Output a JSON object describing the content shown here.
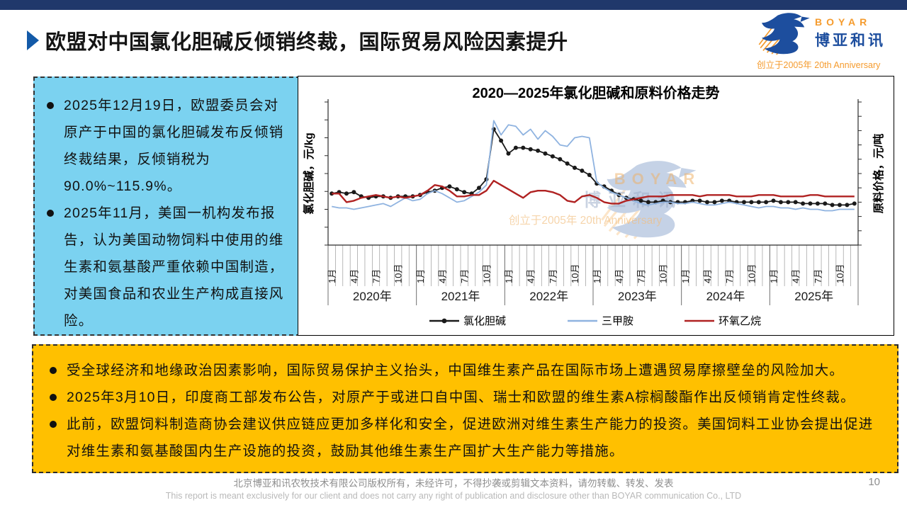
{
  "header": {
    "title": "欧盟对中国氯化胆碱反倾销终裁，国际贸易风险因素提升"
  },
  "logo": {
    "brand_en": "BOYAR",
    "brand_cn": "博亚和讯",
    "tagline": "创立于2005年 20th Anniversary"
  },
  "left_box": {
    "bullets": [
      "2025年12月19日，欧盟委员会对原产于中国的氯化胆碱发布反倾销终裁结果，反倾销税为90.0%~115.9%。",
      "2025年11月，美国一机构发布报告，认为美国动物饲料中使用的维生素和氨基酸严重依赖中国制造，对美国食品和农业生产构成直接风险。"
    ]
  },
  "chart_data": {
    "type": "line",
    "title": "2020—2025年氯化胆碱和原料价格走势",
    "ylabel_left": "氯化胆碱，元/kg",
    "ylabel_right": "原料价格，元/吨",
    "legend_position": "bottom",
    "grid": false,
    "x_axis": {
      "years": [
        "2020年",
        "2021年",
        "2022年",
        "2023年",
        "2024年",
        "2025年"
      ],
      "month_tick_labels": [
        "1月",
        "4月",
        "7月",
        "10月"
      ],
      "months_per_year": 12,
      "start": "2020-01",
      "end": "2025-12"
    },
    "value_scale_note": "坐标轴仅有刻度线、无数值标签；数值为按像素估算的相对价格水平(0-100)",
    "series": [
      {
        "id": "choline-chloride",
        "name": "氯化胆碱",
        "color": "#1a1a1a",
        "marker": true,
        "axis": "left",
        "values": [
          36,
          37,
          36,
          37,
          34,
          33,
          34,
          34,
          33,
          34,
          34,
          34,
          35,
          37,
          38,
          40,
          41,
          39,
          37,
          36,
          40,
          46,
          81,
          73,
          64,
          68,
          68,
          67,
          66,
          64,
          62,
          60,
          57,
          54,
          52,
          49,
          43,
          41,
          38,
          35,
          33,
          32,
          31,
          30,
          30,
          31,
          30,
          30,
          30,
          31,
          31,
          30,
          30,
          31,
          31,
          30,
          30,
          30,
          30,
          30,
          31,
          30,
          30,
          30,
          29,
          29,
          29,
          29,
          28,
          28,
          28,
          29
        ]
      },
      {
        "id": "trimethylamine",
        "name": "三甲胺",
        "color": "#8FB3E0",
        "marker": false,
        "axis": "right",
        "values": [
          27,
          26,
          26,
          25,
          26,
          27,
          28,
          29,
          27,
          30,
          33,
          31,
          32,
          36,
          38,
          36,
          33,
          30,
          31,
          34,
          37,
          42,
          87,
          77,
          84,
          83,
          77,
          81,
          74,
          80,
          76,
          70,
          69,
          75,
          76,
          75,
          44,
          40,
          37,
          35,
          33,
          31,
          29,
          28,
          29,
          30,
          30,
          29,
          29,
          30,
          29,
          28,
          28,
          29,
          30,
          29,
          28,
          27,
          26,
          27,
          27,
          26,
          26,
          25,
          26,
          25,
          25,
          24,
          24,
          25,
          25,
          25
        ]
      },
      {
        "id": "ethylene-oxide",
        "name": "环氧乙烷",
        "color": "#B02222",
        "marker": false,
        "axis": "right",
        "values": [
          36,
          36,
          30,
          31,
          33,
          34,
          35,
          34,
          33,
          34,
          33,
          34,
          35,
          38,
          42,
          41,
          38,
          34,
          34,
          35,
          35,
          38,
          45,
          42,
          39,
          36,
          33,
          37,
          38,
          38,
          37,
          35,
          31,
          30,
          34,
          35,
          33,
          30,
          29,
          29,
          31,
          32,
          33,
          34,
          34,
          34,
          35,
          35,
          35,
          35,
          34,
          35,
          35,
          35,
          35,
          34,
          34,
          34,
          35,
          35,
          35,
          34,
          34,
          34,
          34,
          35,
          35,
          34,
          34,
          34,
          34,
          34
        ]
      }
    ],
    "watermark": {
      "brand": "BOYAR",
      "cn": "博亚和讯",
      "tagline": "创立于2005年 20th Anniversary"
    }
  },
  "bottom_box": {
    "bullets": [
      "受全球经济和地缘政治因素影响，国际贸易保护主义抬头，中国维生素产品在国际市场上遭遇贸易摩擦壁垒的风险加大。",
      "2025年3月10日，印度商工部发布公告，对原产于或进口自中国、瑞士和欧盟的维生素A棕榈酸酯作出反倾销肯定性终裁。",
      "此前，欧盟饲料制造商协会建议供应链应更加多样化和安全，促进欧洲对维生素生产能力的投资。美国饲料工业协会提出促进对维生素和氨基酸国内生产设施的投资，鼓励其他维生素生产国扩大生产能力等措施。"
    ]
  },
  "footer": {
    "line1": "北京博亚和讯农牧技术有限公司版权所有，未经许可，不得抄袭或剪辑文本资料，请勿转载、转发、发表",
    "line2": "This report is meant exclusively for our client and does not carry any right of publication and disclosure other than BOYAR communication Co., LTD",
    "page": "10"
  }
}
